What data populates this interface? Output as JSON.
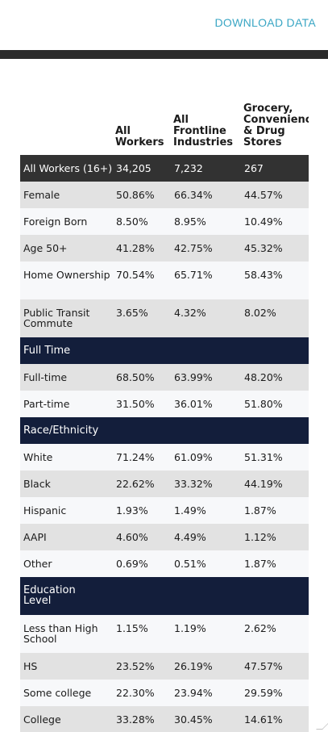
{
  "toolbar": {
    "download_label": "DOWNLOAD DATA"
  },
  "table": {
    "headers": [
      {
        "lines": []
      },
      {
        "lines": [
          "All",
          "Workers"
        ]
      },
      {
        "lines": [
          "All",
          "Frontline",
          "Industries"
        ]
      },
      {
        "lines": [
          "Grocery,",
          "Convenience",
          "& Drug",
          "Stores"
        ]
      }
    ],
    "rows": [
      {
        "kind": "total",
        "cells": [
          "All Workers (16+)",
          "34,205",
          "7,232",
          "267"
        ]
      },
      {
        "kind": "gray",
        "cells": [
          "Female",
          "50.86%",
          "66.34%",
          "44.57%"
        ]
      },
      {
        "kind": "white",
        "cells": [
          "Foreign Born",
          "8.50%",
          "8.95%",
          "10.49%"
        ]
      },
      {
        "kind": "gray",
        "cells": [
          "Age 50+",
          "41.28%",
          "42.75%",
          "45.32%"
        ]
      },
      {
        "kind": "white",
        "tall": true,
        "cells": [
          "Home Ownership",
          "70.54%",
          "65.71%",
          "58.43%"
        ]
      },
      {
        "kind": "gray",
        "tall": true,
        "cells": [
          "Public Transit Commute",
          "3.65%",
          "4.32%",
          "8.02%"
        ]
      },
      {
        "kind": "section",
        "cells": [
          "Full Time"
        ]
      },
      {
        "kind": "gray",
        "cells": [
          "Full-time",
          "68.50%",
          "63.99%",
          "48.20%"
        ]
      },
      {
        "kind": "white",
        "cells": [
          "Part-time",
          "31.50%",
          "36.01%",
          "51.80%"
        ]
      },
      {
        "kind": "section",
        "cells": [
          "Race/Ethnicity"
        ]
      },
      {
        "kind": "white",
        "cells": [
          "White",
          "71.24%",
          "61.09%",
          "51.31%"
        ]
      },
      {
        "kind": "gray",
        "cells": [
          "Black",
          "22.62%",
          "33.32%",
          "44.19%"
        ]
      },
      {
        "kind": "white",
        "cells": [
          "Hispanic",
          "1.93%",
          "1.49%",
          "1.87%"
        ]
      },
      {
        "kind": "gray",
        "cells": [
          "AAPI",
          "4.60%",
          "4.49%",
          "1.12%"
        ]
      },
      {
        "kind": "white",
        "cells": [
          "Other",
          "0.69%",
          "0.51%",
          "1.87%"
        ]
      },
      {
        "kind": "section",
        "tall": true,
        "cells": [
          "Education Level"
        ]
      },
      {
        "kind": "white",
        "tall": true,
        "cells": [
          "Less than High School",
          "1.15%",
          "1.19%",
          "2.62%"
        ]
      },
      {
        "kind": "gray",
        "cells": [
          "HS",
          "23.52%",
          "26.19%",
          "47.57%"
        ]
      },
      {
        "kind": "white",
        "cells": [
          "Some college",
          "22.30%",
          "23.94%",
          "29.59%"
        ]
      },
      {
        "kind": "gray",
        "cells": [
          "College",
          "33.28%",
          "30.45%",
          "14.61%"
        ]
      }
    ]
  }
}
